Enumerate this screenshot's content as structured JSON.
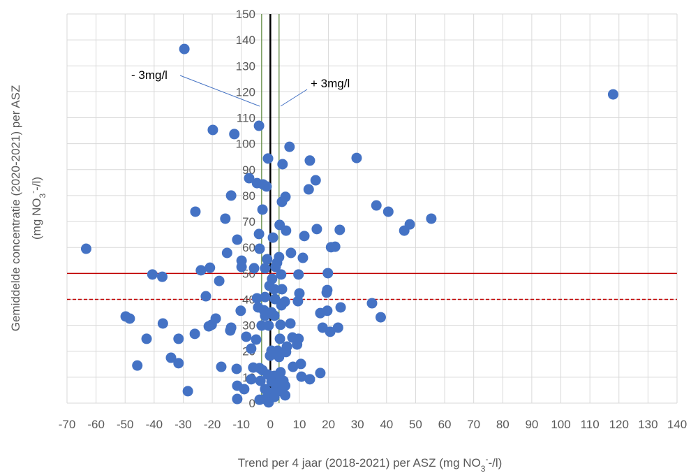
{
  "chart_data": {
    "type": "scatter",
    "xlabel": [
      "Trend per 4 jaar (2018-2021) per ASZ (mg NO",
      "3",
      "-",
      "-/l)"
    ],
    "ylabel": [
      "Gemiddelde concentratie (2020-2021) per ASZ",
      "(mg NO",
      "3",
      "-",
      "-/l)"
    ],
    "xlim": [
      -70,
      140
    ],
    "ylim": [
      0,
      150
    ],
    "xticks": [
      -70,
      -60,
      -50,
      -40,
      -30,
      -20,
      -10,
      0,
      10,
      20,
      30,
      40,
      50,
      60,
      70,
      80,
      90,
      100,
      110,
      120,
      130,
      140
    ],
    "yticks": [
      0,
      10,
      20,
      30,
      40,
      50,
      60,
      70,
      80,
      90,
      100,
      110,
      120,
      130,
      140,
      150
    ],
    "grid": true,
    "color": "#4472c4",
    "reference_lines": {
      "horizontal": [
        {
          "value": 50,
          "color": "#c00000",
          "dashed": false
        },
        {
          "value": 40,
          "color": "#c00000",
          "dashed": true
        }
      ],
      "vertical": [
        {
          "value": 0,
          "color": "#000000"
        },
        {
          "value": -3,
          "color": "#548235"
        },
        {
          "value": 3,
          "color": "#548235"
        }
      ]
    },
    "annotations": [
      "- 3mg/l",
      "+ 3mg/l"
    ],
    "x": [
      -29.6,
      118,
      -19.8,
      -12.4,
      -3.9,
      6.6,
      -0.8,
      4.2,
      13.6,
      29.7,
      -7.3,
      -4.6,
      -2.5,
      -1.3,
      15.6,
      13.2,
      -13.5,
      5.2,
      4,
      36.5,
      40.6,
      -25.8,
      -2.7,
      -15.5,
      55.4,
      48,
      46.1,
      3.2,
      23.9,
      5.4,
      16,
      -3.9,
      11.7,
      0.9,
      -11.4,
      -63.4,
      -3.7,
      -14.9,
      7.1,
      20.9,
      22.3,
      3,
      11.2,
      -9.9,
      -1.1,
      -23.9,
      -20.8,
      -9.9,
      -5.6,
      -1.8,
      1.8,
      2.3,
      -40.6,
      -37.2,
      -17.6,
      3.7,
      9.7,
      19.8,
      0.6,
      -0.3,
      1.4,
      4,
      19.6,
      19.4,
      10,
      -22.2,
      -4.6,
      -1.8,
      1.6,
      5,
      9.5,
      35,
      3.8,
      24.2,
      -4.2,
      -10.2,
      -2.2,
      0.4,
      17.2,
      19.6,
      -49.8,
      -48.4,
      38,
      -1.8,
      1.4,
      -18.8,
      -37,
      -20.2,
      -21.2,
      -13.5,
      -3,
      -0.6,
      3.5,
      6.9,
      18,
      23.3,
      -13.8,
      20.6,
      -26,
      -8.3,
      -42.6,
      -31.6,
      -4.9,
      3.3,
      7.6,
      9.7,
      9.2,
      5.7,
      -6.6,
      0.4,
      2.5,
      5.4,
      -0.1,
      3,
      -34.2,
      -31.6,
      -45.8,
      -16.9,
      -11.6,
      -5.9,
      -3.7,
      -2.7,
      7.8,
      10.5,
      3.5,
      17.2,
      -0.8,
      1.4,
      10.7,
      13.6,
      -6.6,
      -3.4,
      4.5,
      0.4,
      2.7,
      5.1,
      -11.4,
      -9,
      -1.8,
      1.8,
      3.7,
      -28.4,
      -0.1,
      5.1,
      1.4,
      -11.4,
      -3.7,
      -1.8,
      -0.6
    ],
    "values": [
      136.5,
      119,
      105.3,
      103.7,
      106.9,
      98.8,
      94.3,
      92.1,
      93.5,
      94.5,
      86.7,
      84.8,
      84.3,
      83.5,
      85.9,
      82.4,
      80,
      79.5,
      77.6,
      76.2,
      73.8,
      73.8,
      74.6,
      71.1,
      71.1,
      68.9,
      66.5,
      68.7,
      66.8,
      66.5,
      67.1,
      65.2,
      64.4,
      63.8,
      63,
      59.5,
      59.5,
      57.9,
      57.9,
      60.1,
      60.3,
      56.3,
      56,
      54.9,
      55.5,
      51.2,
      52.2,
      52.5,
      52,
      52,
      52.5,
      54.1,
      49.6,
      48.7,
      47.1,
      49.6,
      49.6,
      50.1,
      47.9,
      45.2,
      43.9,
      43.9,
      43.6,
      42.6,
      42.3,
      41.2,
      40.4,
      40.9,
      40.1,
      39.1,
      39.3,
      38.5,
      37.7,
      36.9,
      36.9,
      35.6,
      35.8,
      35,
      34.7,
      35.6,
      33.4,
      32.6,
      33.1,
      33.7,
      33.7,
      32.6,
      30.7,
      30.2,
      29.6,
      29.1,
      29.9,
      29.9,
      30.2,
      30.7,
      29.1,
      29.1,
      28,
      27.5,
      26.7,
      25.6,
      24.8,
      24.8,
      24.5,
      24.8,
      25.3,
      24.8,
      22.6,
      21.8,
      21,
      20.2,
      20.2,
      19.7,
      18.3,
      17.8,
      17.5,
      15.4,
      14.5,
      14,
      13.2,
      13.7,
      13.5,
      12.7,
      14,
      15.1,
      11.9,
      11.6,
      11,
      10.5,
      10.2,
      9.2,
      9.2,
      8.6,
      8.6,
      8.3,
      7.8,
      6.7,
      6.7,
      5.4,
      5.4,
      5.1,
      4.6,
      4.6,
      4,
      3,
      2.4,
      1.6,
      1.3,
      1.6,
      0.3
    ]
  }
}
